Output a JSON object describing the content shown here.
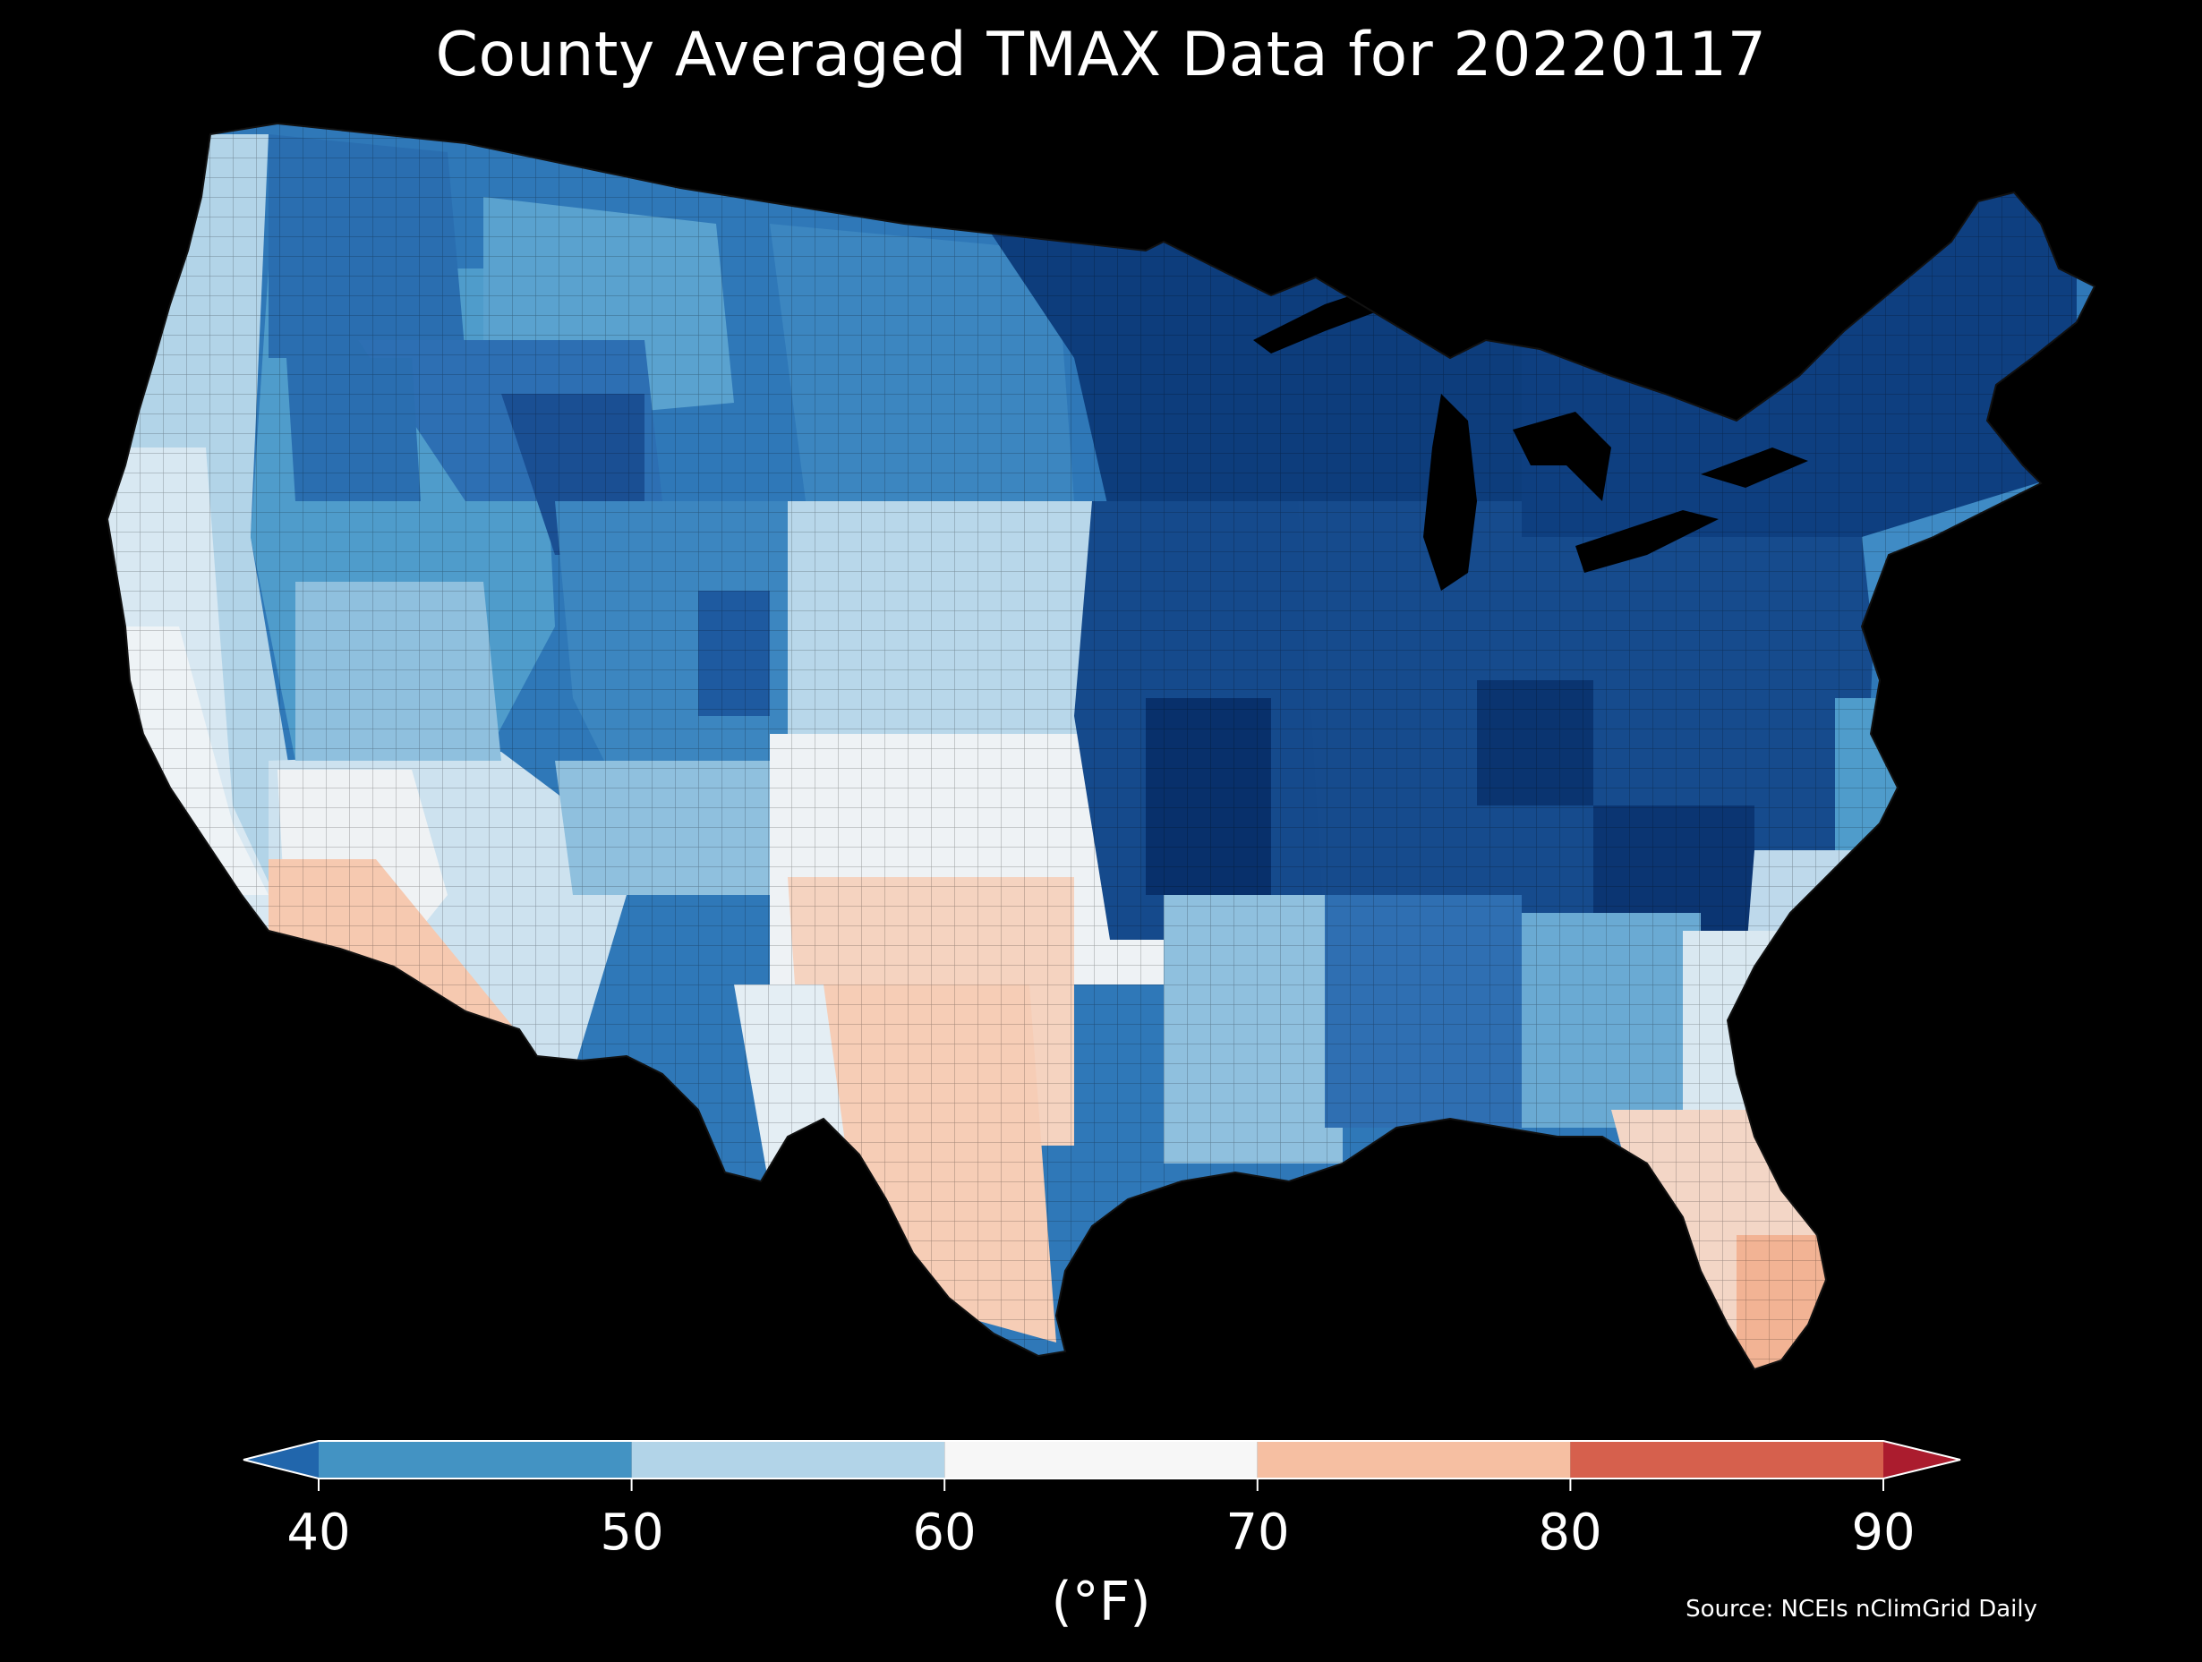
{
  "title": "County Averaged TMAX Data for 20220117",
  "colorbar": {
    "unit": "(°F)",
    "ticks": [
      "40",
      "50",
      "60",
      "70",
      "80",
      "90"
    ],
    "bins": [
      {
        "label": "<40",
        "color": "#2166ac"
      },
      {
        "label": "40-50",
        "color": "#4393c3"
      },
      {
        "label": "50-60",
        "color": "#b2d4e8"
      },
      {
        "label": "60-70",
        "color": "#f7f7f7"
      },
      {
        "label": "70-80",
        "color": "#f6bfa2"
      },
      {
        "label": "80-90",
        "color": "#d6604d"
      },
      {
        "label": ">90",
        "color": "#ab1c2e"
      }
    ]
  },
  "source": "Source: NCEIs nClimGrid Daily",
  "palette": {
    "darkest": "#08306b",
    "dark": "#1e5aa0",
    "mid": "#3a84c0",
    "light": "#8fc0de",
    "pale": "#cfe3f0",
    "white": "#f2f2f2",
    "peach": "#f6c9b0"
  }
}
